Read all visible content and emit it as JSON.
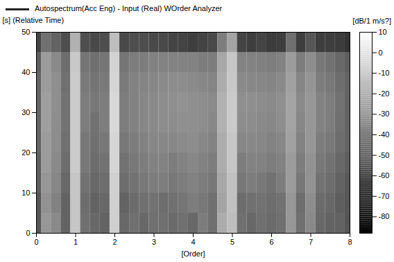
{
  "chart_data": {
    "type": "heatmap",
    "title": "Autospectrum(Acc Eng) - Input (Real) WOrder Analyzer",
    "x_label": "[Order]",
    "y_label": "[s] (Relative Time)",
    "x": [
      0,
      0.25,
      0.5,
      0.75,
      1,
      1.25,
      1.5,
      1.75,
      2,
      2.25,
      2.5,
      2.75,
      3,
      3.25,
      3.5,
      3.75,
      4,
      4.25,
      4.5,
      4.75,
      5,
      5.25,
      5.5,
      5.75,
      6,
      6.25,
      6.5,
      6.75,
      7,
      7.25,
      7.5,
      7.75,
      8
    ],
    "y": [
      2.5,
      7.5,
      12.5,
      17.5,
      22.5,
      27.5,
      32.5,
      37.5,
      42.5,
      47.5
    ],
    "values": [
      [
        -55,
        -30,
        -35,
        -50,
        -12,
        -45,
        -48,
        -50,
        -8,
        -48,
        -45,
        -48,
        -45,
        -45,
        -47,
        -45,
        -48,
        -40,
        -45,
        -22,
        -15,
        -45,
        -48,
        -45,
        -47,
        -45,
        -30,
        -45,
        -35,
        -48,
        -50,
        -50,
        -55
      ],
      [
        -55,
        -32,
        -38,
        -50,
        -12,
        -46,
        -50,
        -48,
        -8,
        -50,
        -47,
        -45,
        -44,
        -46,
        -45,
        -43,
        -40,
        -42,
        -45,
        -25,
        -14,
        -46,
        -45,
        -44,
        -46,
        -44,
        -30,
        -46,
        -34,
        -47,
        -48,
        -52,
        -55
      ],
      [
        -52,
        -30,
        -36,
        -48,
        -12,
        -44,
        -48,
        -46,
        -8,
        -46,
        -44,
        -42,
        -40,
        -40,
        -42,
        -40,
        -38,
        -40,
        -42,
        -24,
        -14,
        -42,
        -40,
        -42,
        -44,
        -40,
        -28,
        -42,
        -32,
        -44,
        -46,
        -50,
        -54
      ],
      [
        -52,
        -28,
        -35,
        -46,
        -10,
        -42,
        -46,
        -44,
        -6,
        -44,
        -42,
        -40,
        -38,
        -38,
        -40,
        -38,
        -36,
        -38,
        -40,
        -22,
        -12,
        -40,
        -38,
        -38,
        -40,
        -38,
        -28,
        -40,
        -32,
        -42,
        -44,
        -48,
        -52
      ],
      [
        -50,
        -28,
        -34,
        -45,
        -10,
        -42,
        -45,
        -42,
        -6,
        -42,
        -40,
        -38,
        -36,
        -36,
        -36,
        -35,
        -34,
        -36,
        -38,
        -22,
        -12,
        -36,
        -36,
        -36,
        -38,
        -36,
        -26,
        -38,
        -30,
        -40,
        -42,
        -46,
        -50
      ],
      [
        -50,
        -27,
        -34,
        -44,
        -10,
        -40,
        -44,
        -40,
        -5,
        -40,
        -38,
        -36,
        -35,
        -34,
        -34,
        -33,
        -33,
        -34,
        -36,
        -20,
        -10,
        -34,
        -34,
        -35,
        -36,
        -34,
        -25,
        -36,
        -30,
        -38,
        -40,
        -45,
        -50
      ],
      [
        -50,
        -27,
        -33,
        -44,
        -10,
        -40,
        -42,
        -40,
        -5,
        -40,
        -38,
        -36,
        -35,
        -34,
        -33,
        -32,
        -33,
        -34,
        -35,
        -20,
        -10,
        -33,
        -33,
        -34,
        -35,
        -33,
        -25,
        -35,
        -30,
        -38,
        -40,
        -44,
        -50
      ],
      [
        -50,
        -28,
        -33,
        -45,
        -10,
        -41,
        -43,
        -41,
        -6,
        -41,
        -38,
        -37,
        -36,
        -35,
        -34,
        -34,
        -35,
        -36,
        -37,
        -22,
        -11,
        -35,
        -36,
        -36,
        -37,
        -35,
        -26,
        -37,
        -31,
        -40,
        -42,
        -46,
        -50
      ],
      [
        -52,
        -28,
        -35,
        -46,
        -11,
        -43,
        -45,
        -43,
        -7,
        -43,
        -40,
        -40,
        -38,
        -38,
        -38,
        -38,
        -38,
        -40,
        -40,
        -24,
        -12,
        -38,
        -38,
        -39,
        -40,
        -38,
        -28,
        -40,
        -34,
        -42,
        -44,
        -48,
        -52
      ],
      [
        -62,
        -45,
        -50,
        -58,
        -20,
        -58,
        -60,
        -58,
        -15,
        -60,
        -58,
        -58,
        -60,
        -60,
        -62,
        -62,
        -64,
        -62,
        -60,
        -40,
        -25,
        -62,
        -64,
        -62,
        -65,
        -64,
        -45,
        -64,
        -55,
        -64,
        -64,
        -65,
        -68
      ]
    ],
    "xlim": [
      0,
      8
    ],
    "ylim": [
      0,
      50
    ],
    "xticks": [
      0,
      1,
      2,
      3,
      4,
      5,
      6,
      7,
      8
    ],
    "yticks": [
      0,
      10,
      20,
      30,
      40,
      50
    ],
    "colorbar": {
      "label": "[dB/1 m/s?]",
      "range": [
        -88,
        10
      ],
      "ticks": [
        10,
        0,
        -10,
        -20,
        -30,
        -40,
        -50,
        -60,
        -70,
        -80
      ]
    }
  }
}
